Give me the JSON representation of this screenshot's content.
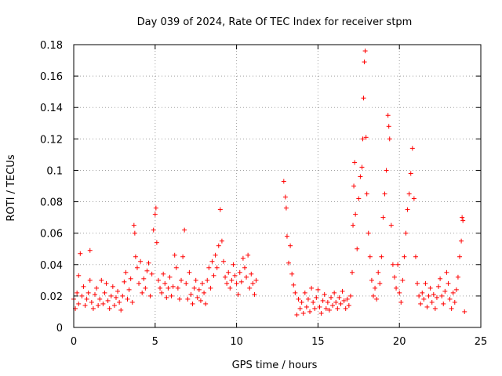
{
  "chart_data": {
    "type": "scatter",
    "title": "Day 039 of 2024, Rate Of TEC Index for receiver stpm",
    "xlabel": "GPS time / hours",
    "ylabel": "ROTI / TECUs",
    "xlim": [
      0,
      25
    ],
    "ylim": [
      0,
      0.18
    ],
    "x_ticks": [
      "0",
      "5",
      "10",
      "15",
      "20",
      "25"
    ],
    "y_ticks": [
      "0",
      "0.02",
      "0.04",
      "0.06",
      "0.08",
      "0.1",
      "0.12",
      "0.14",
      "0.16",
      "0.18"
    ],
    "x_tick_values": [
      0,
      5,
      10,
      15,
      20,
      25
    ],
    "y_tick_values": [
      0,
      0.02,
      0.04,
      0.06,
      0.08,
      0.1,
      0.12,
      0.14,
      0.16,
      0.18
    ],
    "grid": true,
    "marker": "+",
    "color": "#ff0000",
    "series": [
      {
        "name": "ROTI",
        "points": [
          [
            0.0,
            0.018
          ],
          [
            0.1,
            0.012
          ],
          [
            0.2,
            0.022
          ],
          [
            0.3,
            0.015
          ],
          [
            0.3,
            0.033
          ],
          [
            0.4,
            0.047
          ],
          [
            0.5,
            0.02
          ],
          [
            0.6,
            0.026
          ],
          [
            0.7,
            0.014
          ],
          [
            0.8,
            0.018
          ],
          [
            0.9,
            0.022
          ],
          [
            1.0,
            0.049
          ],
          [
            1.0,
            0.03
          ],
          [
            1.1,
            0.016
          ],
          [
            1.2,
            0.012
          ],
          [
            1.3,
            0.021
          ],
          [
            1.4,
            0.025
          ],
          [
            1.5,
            0.014
          ],
          [
            1.6,
            0.018
          ],
          [
            1.7,
            0.03
          ],
          [
            1.8,
            0.015
          ],
          [
            1.9,
            0.022
          ],
          [
            2.0,
            0.028
          ],
          [
            2.1,
            0.017
          ],
          [
            2.2,
            0.012
          ],
          [
            2.3,
            0.02
          ],
          [
            2.4,
            0.026
          ],
          [
            2.5,
            0.014
          ],
          [
            2.6,
            0.019
          ],
          [
            2.7,
            0.023
          ],
          [
            2.8,
            0.016
          ],
          [
            2.9,
            0.011
          ],
          [
            3.0,
            0.02
          ],
          [
            3.1,
            0.029
          ],
          [
            3.2,
            0.035
          ],
          [
            3.3,
            0.018
          ],
          [
            3.4,
            0.024
          ],
          [
            3.5,
            0.031
          ],
          [
            3.6,
            0.016
          ],
          [
            3.7,
            0.065
          ],
          [
            3.75,
            0.06
          ],
          [
            3.8,
            0.045
          ],
          [
            3.9,
            0.038
          ],
          [
            4.0,
            0.028
          ],
          [
            4.1,
            0.042
          ],
          [
            4.2,
            0.022
          ],
          [
            4.3,
            0.031
          ],
          [
            4.4,
            0.025
          ],
          [
            4.5,
            0.036
          ],
          [
            4.6,
            0.041
          ],
          [
            4.7,
            0.02
          ],
          [
            4.8,
            0.034
          ],
          [
            4.9,
            0.062
          ],
          [
            5.0,
            0.072
          ],
          [
            5.05,
            0.076
          ],
          [
            5.1,
            0.054
          ],
          [
            5.2,
            0.03
          ],
          [
            5.3,
            0.025
          ],
          [
            5.4,
            0.022
          ],
          [
            5.5,
            0.034
          ],
          [
            5.6,
            0.028
          ],
          [
            5.7,
            0.019
          ],
          [
            5.8,
            0.025
          ],
          [
            5.9,
            0.032
          ],
          [
            6.0,
            0.02
          ],
          [
            6.1,
            0.026
          ],
          [
            6.2,
            0.046
          ],
          [
            6.3,
            0.038
          ],
          [
            6.4,
            0.025
          ],
          [
            6.5,
            0.018
          ],
          [
            6.6,
            0.03
          ],
          [
            6.7,
            0.045
          ],
          [
            6.8,
            0.062
          ],
          [
            6.9,
            0.028
          ],
          [
            7.0,
            0.018
          ],
          [
            7.1,
            0.035
          ],
          [
            7.2,
            0.021
          ],
          [
            7.3,
            0.015
          ],
          [
            7.4,
            0.025
          ],
          [
            7.5,
            0.03
          ],
          [
            7.6,
            0.019
          ],
          [
            7.7,
            0.024
          ],
          [
            7.8,
            0.017
          ],
          [
            7.9,
            0.028
          ],
          [
            8.0,
            0.022
          ],
          [
            8.1,
            0.015
          ],
          [
            8.2,
            0.03
          ],
          [
            8.3,
            0.038
          ],
          [
            8.4,
            0.025
          ],
          [
            8.5,
            0.042
          ],
          [
            8.6,
            0.033
          ],
          [
            8.7,
            0.046
          ],
          [
            8.8,
            0.038
          ],
          [
            8.9,
            0.052
          ],
          [
            9.0,
            0.075
          ],
          [
            9.1,
            0.055
          ],
          [
            9.2,
            0.042
          ],
          [
            9.3,
            0.032
          ],
          [
            9.4,
            0.028
          ],
          [
            9.5,
            0.035
          ],
          [
            9.6,
            0.025
          ],
          [
            9.7,
            0.03
          ],
          [
            9.8,
            0.04
          ],
          [
            9.9,
            0.033
          ],
          [
            10.0,
            0.028
          ],
          [
            10.1,
            0.021
          ],
          [
            10.2,
            0.035
          ],
          [
            10.3,
            0.029
          ],
          [
            10.4,
            0.044
          ],
          [
            10.5,
            0.038
          ],
          [
            10.6,
            0.032
          ],
          [
            10.7,
            0.046
          ],
          [
            10.8,
            0.025
          ],
          [
            10.9,
            0.034
          ],
          [
            11.0,
            0.028
          ],
          [
            11.1,
            0.021
          ],
          [
            11.2,
            0.03
          ],
          [
            12.9,
            0.093
          ],
          [
            13.0,
            0.083
          ],
          [
            13.05,
            0.076
          ],
          [
            13.1,
            0.058
          ],
          [
            13.2,
            0.041
          ],
          [
            13.3,
            0.052
          ],
          [
            13.4,
            0.034
          ],
          [
            13.5,
            0.027
          ],
          [
            13.6,
            0.022
          ],
          [
            13.7,
            0.008
          ],
          [
            13.8,
            0.018
          ],
          [
            13.9,
            0.012
          ],
          [
            14.0,
            0.016
          ],
          [
            14.1,
            0.009
          ],
          [
            14.2,
            0.022
          ],
          [
            14.3,
            0.013
          ],
          [
            14.4,
            0.018
          ],
          [
            14.5,
            0.01
          ],
          [
            14.6,
            0.025
          ],
          [
            14.7,
            0.016
          ],
          [
            14.8,
            0.012
          ],
          [
            14.9,
            0.019
          ],
          [
            15.0,
            0.024
          ],
          [
            15.1,
            0.013
          ],
          [
            15.2,
            0.009
          ],
          [
            15.3,
            0.017
          ],
          [
            15.4,
            0.021
          ],
          [
            15.5,
            0.012
          ],
          [
            15.6,
            0.016
          ],
          [
            15.7,
            0.011
          ],
          [
            15.8,
            0.019
          ],
          [
            15.9,
            0.014
          ],
          [
            16.0,
            0.022
          ],
          [
            16.1,
            0.016
          ],
          [
            16.2,
            0.012
          ],
          [
            16.3,
            0.019
          ],
          [
            16.4,
            0.015
          ],
          [
            16.5,
            0.023
          ],
          [
            16.6,
            0.017
          ],
          [
            16.7,
            0.012
          ],
          [
            16.8,
            0.018
          ],
          [
            16.9,
            0.014
          ],
          [
            17.0,
            0.02
          ],
          [
            17.1,
            0.035
          ],
          [
            17.15,
            0.065
          ],
          [
            17.2,
            0.09
          ],
          [
            17.25,
            0.105
          ],
          [
            17.3,
            0.072
          ],
          [
            17.4,
            0.05
          ],
          [
            17.5,
            0.082
          ],
          [
            17.6,
            0.096
          ],
          [
            17.7,
            0.102
          ],
          [
            17.75,
            0.12
          ],
          [
            17.8,
            0.146
          ],
          [
            17.85,
            0.169
          ],
          [
            17.9,
            0.176
          ],
          [
            17.95,
            0.121
          ],
          [
            18.0,
            0.085
          ],
          [
            18.1,
            0.06
          ],
          [
            18.2,
            0.045
          ],
          [
            18.3,
            0.03
          ],
          [
            18.4,
            0.02
          ],
          [
            18.5,
            0.025
          ],
          [
            18.6,
            0.018
          ],
          [
            18.7,
            0.035
          ],
          [
            18.8,
            0.028
          ],
          [
            18.9,
            0.045
          ],
          [
            19.0,
            0.07
          ],
          [
            19.1,
            0.085
          ],
          [
            19.2,
            0.1
          ],
          [
            19.3,
            0.135
          ],
          [
            19.35,
            0.128
          ],
          [
            19.4,
            0.12
          ],
          [
            19.5,
            0.065
          ],
          [
            19.6,
            0.04
          ],
          [
            19.7,
            0.032
          ],
          [
            19.8,
            0.025
          ],
          [
            19.9,
            0.04
          ],
          [
            20.0,
            0.022
          ],
          [
            20.1,
            0.016
          ],
          [
            20.2,
            0.03
          ],
          [
            20.3,
            0.045
          ],
          [
            20.4,
            0.06
          ],
          [
            20.5,
            0.075
          ],
          [
            20.6,
            0.085
          ],
          [
            20.7,
            0.098
          ],
          [
            20.8,
            0.114
          ],
          [
            20.9,
            0.082
          ],
          [
            21.0,
            0.045
          ],
          [
            21.1,
            0.028
          ],
          [
            21.2,
            0.02
          ],
          [
            21.3,
            0.015
          ],
          [
            21.4,
            0.022
          ],
          [
            21.5,
            0.018
          ],
          [
            21.6,
            0.028
          ],
          [
            21.7,
            0.013
          ],
          [
            21.8,
            0.02
          ],
          [
            21.9,
            0.025
          ],
          [
            22.0,
            0.016
          ],
          [
            22.1,
            0.021
          ],
          [
            22.2,
            0.012
          ],
          [
            22.3,
            0.019
          ],
          [
            22.4,
            0.026
          ],
          [
            22.5,
            0.031
          ],
          [
            22.6,
            0.02
          ],
          [
            22.7,
            0.015
          ],
          [
            22.8,
            0.023
          ],
          [
            22.9,
            0.035
          ],
          [
            23.0,
            0.028
          ],
          [
            23.1,
            0.018
          ],
          [
            23.2,
            0.012
          ],
          [
            23.3,
            0.022
          ],
          [
            23.4,
            0.016
          ],
          [
            23.5,
            0.024
          ],
          [
            23.6,
            0.032
          ],
          [
            23.7,
            0.045
          ],
          [
            23.8,
            0.055
          ],
          [
            23.85,
            0.07
          ],
          [
            23.9,
            0.068
          ],
          [
            24.0,
            0.01
          ]
        ]
      }
    ]
  }
}
